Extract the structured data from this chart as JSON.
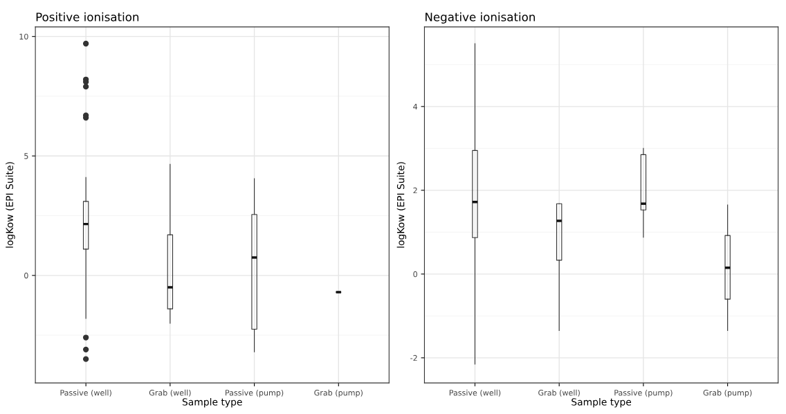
{
  "chart_data": [
    {
      "type": "box",
      "title": "Positive ionisation",
      "xlabel": "Sample type",
      "ylabel": "logKow (EPI Suite)",
      "categories": [
        "Passive (well)",
        "Grab (well)",
        "Passive (pump)",
        "Grab (pump)"
      ],
      "ylim": [
        -4.5,
        10.4
      ],
      "yticks": [
        0,
        5,
        10
      ],
      "grid": true,
      "boxes": [
        {
          "low": -1.8,
          "q1": 1.1,
          "median": 2.15,
          "q3": 3.1,
          "high": 4.1,
          "outliers": [
            9.7,
            8.2,
            8.1,
            7.9,
            6.7,
            6.6,
            -2.6,
            -3.1,
            -3.5
          ]
        },
        {
          "low": -2.0,
          "q1": -1.4,
          "median": -0.5,
          "q3": 1.7,
          "high": 4.65
        },
        {
          "low": -3.2,
          "q1": -2.25,
          "median": 0.75,
          "q3": 2.55,
          "high": 4.05
        },
        {
          "low": -0.7,
          "q1": -0.7,
          "median": -0.7,
          "q3": -0.7,
          "high": -0.7
        }
      ]
    },
    {
      "type": "box",
      "title": "Negative ionisation",
      "xlabel": "Sample type",
      "ylabel": "logKow (EPI Suite)",
      "categories": [
        "Passive (well)",
        "Grab (well)",
        "Passive (pump)",
        "Grab (pump)"
      ],
      "ylim": [
        -2.6,
        5.9
      ],
      "yticks": [
        -2,
        0,
        2,
        4
      ],
      "grid": true,
      "boxes": [
        {
          "low": -2.15,
          "q1": 0.87,
          "median": 1.72,
          "q3": 2.95,
          "high": 5.5
        },
        {
          "low": -1.35,
          "q1": 0.33,
          "median": 1.27,
          "q3": 1.68,
          "high": 1.68
        },
        {
          "low": 0.88,
          "q1": 1.53,
          "median": 1.68,
          "q3": 2.85,
          "high": 3.0
        },
        {
          "low": -1.35,
          "q1": -0.6,
          "median": 0.15,
          "q3": 0.92,
          "high": 1.65
        }
      ]
    }
  ]
}
